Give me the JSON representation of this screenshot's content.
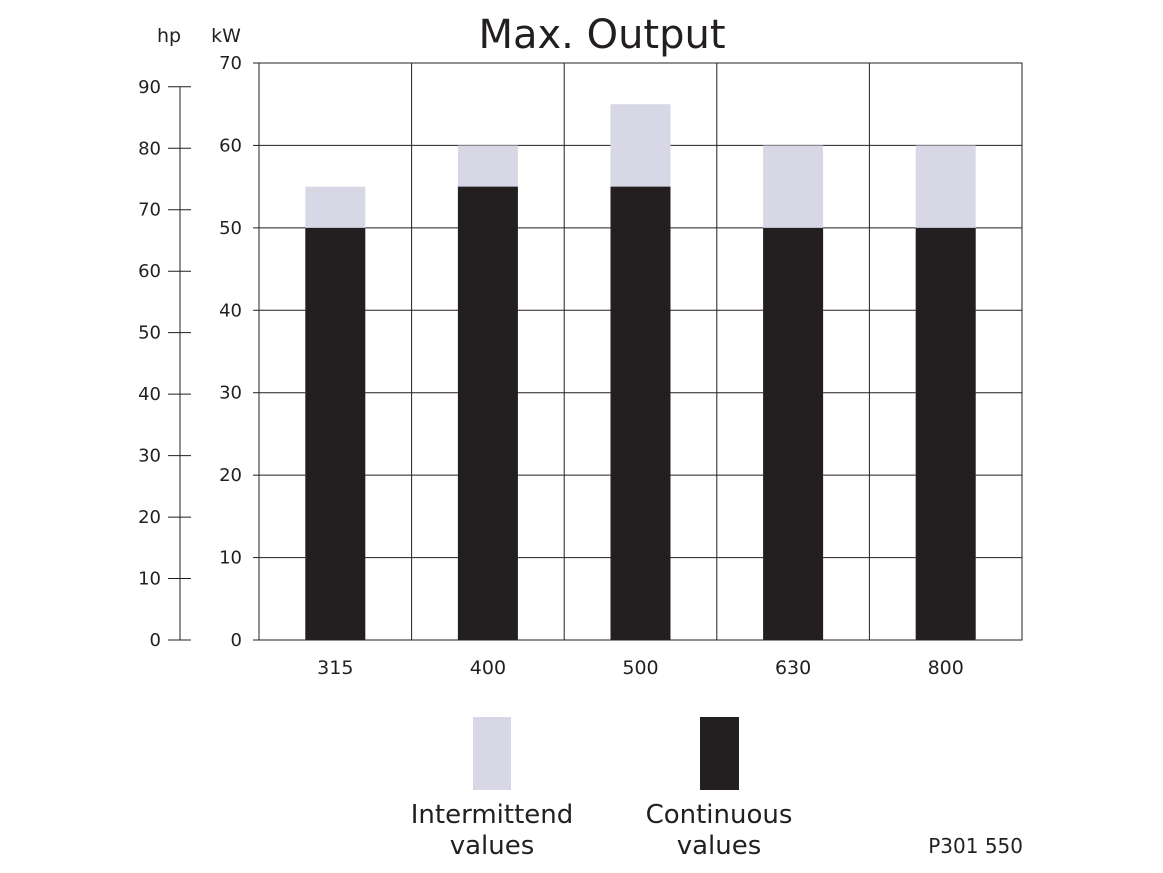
{
  "chart_data": {
    "type": "bar",
    "title": "Max. Output",
    "categories": [
      "315",
      "400",
      "500",
      "630",
      "800"
    ],
    "series": [
      {
        "name": "Continuous values",
        "values": [
          50,
          55,
          55,
          50,
          50
        ],
        "color": "#231f20"
      },
      {
        "name": "Intermittend values",
        "values": [
          55,
          60,
          65,
          60,
          60
        ],
        "color": "#d7d7e6"
      }
    ],
    "stacked_overlay": true,
    "ylabel": "kW",
    "ylim": [
      0,
      70
    ],
    "yticks": [
      0,
      10,
      20,
      30,
      40,
      50,
      60,
      70
    ],
    "secondary_axis": {
      "label": "hp",
      "ylim": [
        0,
        93.87
      ],
      "ticks": [
        0,
        10,
        20,
        30,
        40,
        50,
        60,
        70,
        80,
        90
      ]
    },
    "grid": true,
    "legend": {
      "placement": "bottom",
      "entries": [
        {
          "line1": "Intermittend",
          "line2": "values",
          "color": "#d7d7e6"
        },
        {
          "line1": "Continuous",
          "line2": "values",
          "color": "#231f20"
        }
      ]
    },
    "code": "P301 550"
  }
}
